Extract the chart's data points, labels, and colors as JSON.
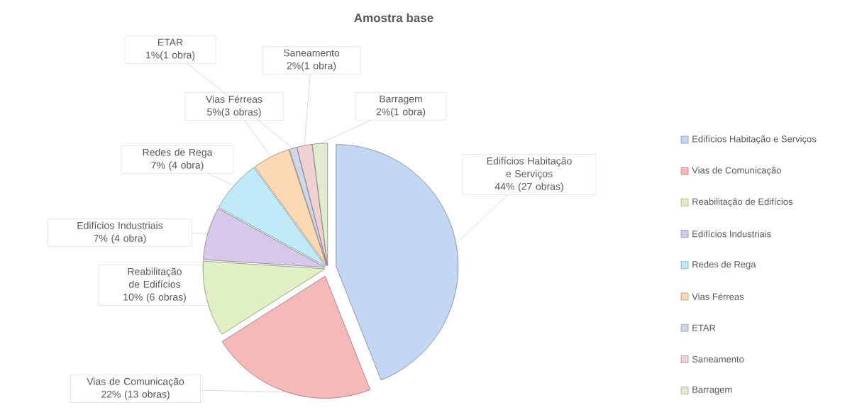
{
  "chart_data": {
    "type": "pie",
    "title": "Amostra base",
    "categories": [
      "Edifícios Habitação e Serviços",
      "Vias de Comunicação",
      "Reabilitação de Edifícios",
      "Edifícios Industriais",
      "Redes de Rega",
      "Vias Férreas",
      "ETAR",
      "Saneamento",
      "Barragem"
    ],
    "values": [
      44,
      22,
      10,
      7,
      7,
      5,
      1,
      2,
      2
    ],
    "value_labels": [
      "44% (27 obras)",
      "22% (13 obras)",
      "10% (6 obras)",
      "7% (4 obra)",
      "7% (4 obra)",
      "5%(3 obras)",
      "1%(1 obra)",
      "2%(1 obra)",
      "2%(1 obra)"
    ],
    "colors": [
      "#c3d6f3",
      "#f6b9b9",
      "#e0efc4",
      "#d5c8e8",
      "#bfeaf7",
      "#fcd8b4",
      "#cdd7e8",
      "#efd0d3",
      "#e1ebd0"
    ],
    "legend": "right"
  }
}
